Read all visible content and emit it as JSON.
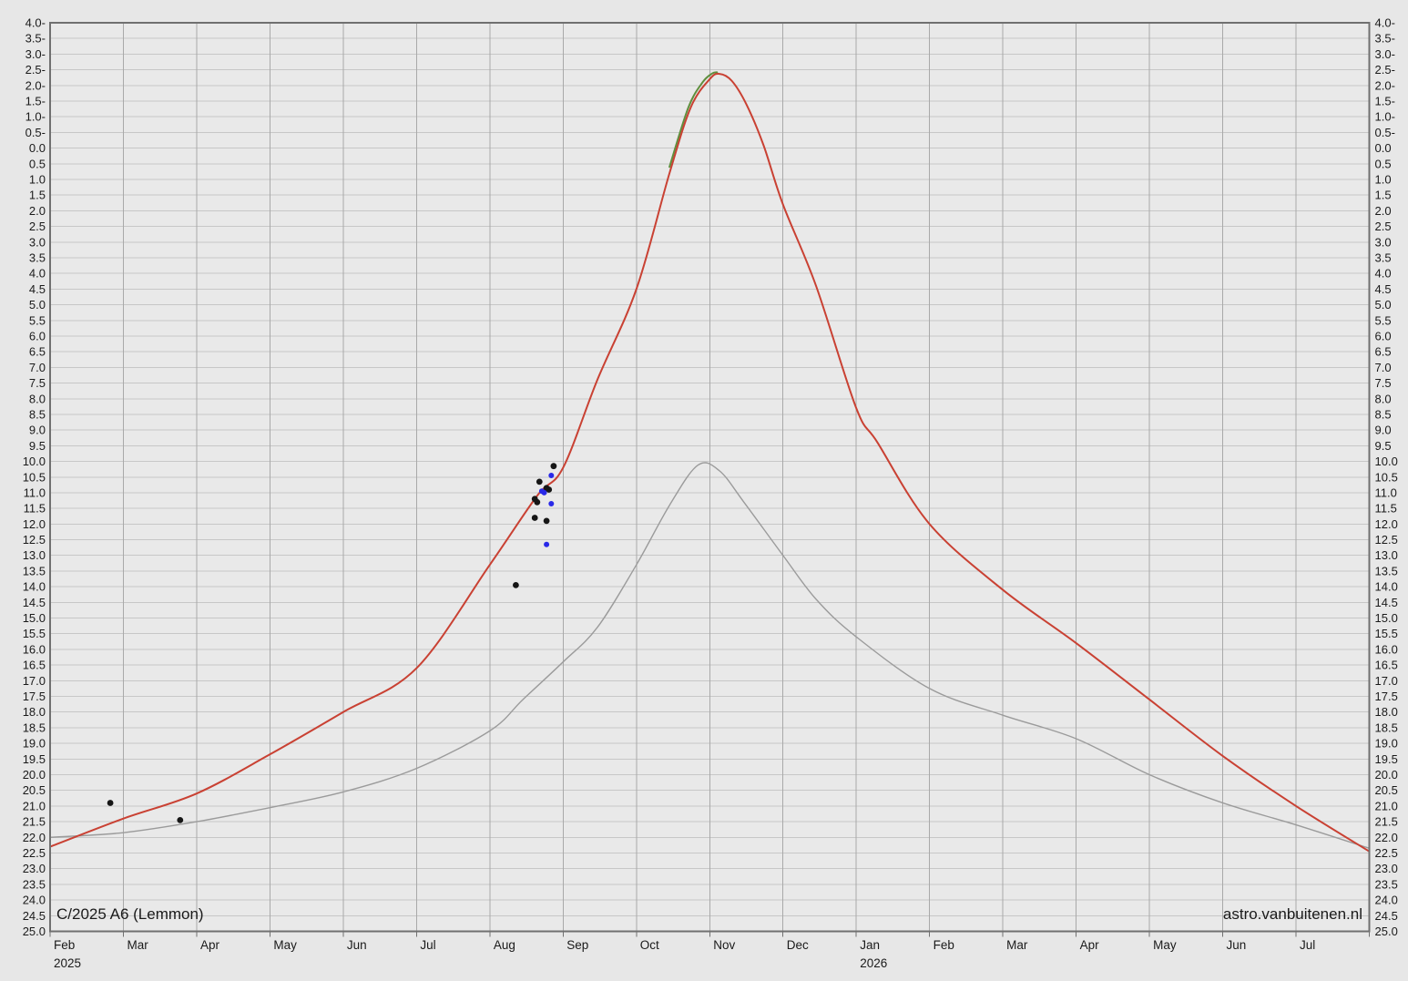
{
  "page": {
    "title": "C/2025 A6 (Lemmon)",
    "watermark": "astro.vanbuitenen.nl"
  },
  "style": {
    "page_bg": "#e7e7e7",
    "plot_bg": "#e9e9e9",
    "grid_horizontal": "#c7c7c7",
    "grid_vertical": "#a9a9a9",
    "frame": "#707070",
    "text": "#1a1a1a",
    "red_curve": "#c94133",
    "green_curve": "#5f8f3e",
    "gray_curve": "#9b9b9b",
    "black_points": "#161616",
    "blue_points": "#2929e8"
  },
  "chart_data": {
    "type": "line",
    "title": "C/2025 A6 (Lemmon)",
    "watermark": "astro.vanbuitenen.nl",
    "grid": true,
    "legend_position": "none",
    "x_axis": {
      "unit": "month",
      "start": "2025-02-01",
      "end": "2026-08-01",
      "month_labels": [
        "Feb",
        "Mar",
        "Apr",
        "May",
        "Jun",
        "Jul",
        "Aug",
        "Sep",
        "Oct",
        "Nov",
        "Dec",
        "Jan",
        "Feb",
        "Mar",
        "Apr",
        "May",
        "Jun",
        "Jul"
      ],
      "year_labels": [
        {
          "label": "2025",
          "month_index": 0
        },
        {
          "label": "2026",
          "month_index": 11
        }
      ]
    },
    "y_axis": {
      "quantity": "magnitude",
      "min": -4.0,
      "max": 25.0,
      "step": 0.5,
      "negative_label_suffix": "-",
      "label_sides": [
        "left",
        "right"
      ],
      "brighter_is_up": true
    },
    "series": [
      {
        "name": "prediction-previous",
        "color_key": "gray_curve",
        "width": 1.4,
        "points": [
          [
            "2025-02-01",
            22.0
          ],
          [
            "2025-03-01",
            21.85
          ],
          [
            "2025-04-01",
            21.5
          ],
          [
            "2025-05-01",
            21.05
          ],
          [
            "2025-06-01",
            20.55
          ],
          [
            "2025-07-01",
            19.8
          ],
          [
            "2025-08-01",
            18.6
          ],
          [
            "2025-08-15",
            17.6
          ],
          [
            "2025-09-01",
            16.4
          ],
          [
            "2025-09-15",
            15.3
          ],
          [
            "2025-10-01",
            13.3
          ],
          [
            "2025-10-15",
            11.4
          ],
          [
            "2025-10-27",
            10.12
          ],
          [
            "2025-11-05",
            10.3
          ],
          [
            "2025-11-15",
            11.3
          ],
          [
            "2025-12-01",
            13.0
          ],
          [
            "2025-12-15",
            14.4
          ],
          [
            "2026-01-01",
            15.6
          ],
          [
            "2026-02-01",
            17.25
          ],
          [
            "2026-03-01",
            18.1
          ],
          [
            "2026-04-01",
            18.85
          ],
          [
            "2026-05-01",
            20.0
          ],
          [
            "2026-06-01",
            20.9
          ],
          [
            "2026-07-01",
            21.6
          ],
          [
            "2026-08-01",
            22.35
          ]
        ]
      },
      {
        "name": "prediction-alt",
        "color_key": "green_curve",
        "width": 2,
        "points": [
          [
            "2025-10-15",
            0.6
          ],
          [
            "2025-10-23",
            -1.3
          ],
          [
            "2025-10-29",
            -2.1
          ],
          [
            "2025-11-02",
            -2.38
          ],
          [
            "2025-11-04",
            -2.42
          ]
        ]
      },
      {
        "name": "prediction-current",
        "color_key": "red_curve",
        "width": 2,
        "points": [
          [
            "2025-02-01",
            22.3
          ],
          [
            "2025-03-01",
            21.4
          ],
          [
            "2025-04-01",
            20.6
          ],
          [
            "2025-05-01",
            19.35
          ],
          [
            "2025-06-01",
            18.0
          ],
          [
            "2025-07-01",
            16.6
          ],
          [
            "2025-08-01",
            13.3
          ],
          [
            "2025-08-21",
            11.1
          ],
          [
            "2025-09-01",
            10.2
          ],
          [
            "2025-09-15",
            7.4
          ],
          [
            "2025-10-01",
            4.5
          ],
          [
            "2025-10-15",
            0.8
          ],
          [
            "2025-10-24",
            -1.3
          ],
          [
            "2025-11-01",
            -2.2
          ],
          [
            "2025-11-05",
            -2.37
          ],
          [
            "2025-11-10",
            -2.15
          ],
          [
            "2025-11-16",
            -1.4
          ],
          [
            "2025-11-23",
            -0.1
          ],
          [
            "2025-12-01",
            1.8
          ],
          [
            "2025-12-15",
            4.4
          ],
          [
            "2026-01-01",
            8.3
          ],
          [
            "2026-01-10",
            9.4
          ],
          [
            "2026-02-01",
            12.0
          ],
          [
            "2026-03-01",
            14.1
          ],
          [
            "2026-04-01",
            15.8
          ],
          [
            "2026-05-01",
            17.6
          ],
          [
            "2026-06-01",
            19.4
          ],
          [
            "2026-07-01",
            21.0
          ],
          [
            "2026-08-01",
            22.45
          ]
        ]
      }
    ],
    "observations": [
      {
        "name": "observations-black",
        "color_key": "black_points",
        "radius": 3.4,
        "points": [
          [
            "2025-02-24",
            20.9
          ],
          [
            "2025-03-25",
            21.45
          ],
          [
            "2025-08-12",
            13.95
          ],
          [
            "2025-08-20",
            11.8
          ],
          [
            "2025-08-25",
            11.9
          ],
          [
            "2025-08-20",
            11.2
          ],
          [
            "2025-08-21",
            11.3
          ],
          [
            "2025-08-22",
            10.65
          ],
          [
            "2025-08-25",
            10.85
          ],
          [
            "2025-08-26",
            10.9
          ],
          [
            "2025-08-28",
            10.15
          ]
        ]
      },
      {
        "name": "observations-blue",
        "color_key": "blue_points",
        "radius": 3.0,
        "points": [
          [
            "2025-08-27",
            10.45
          ],
          [
            "2025-08-23",
            10.95
          ],
          [
            "2025-08-24",
            11.0
          ],
          [
            "2025-08-27",
            11.35
          ],
          [
            "2025-08-25",
            12.65
          ]
        ]
      }
    ]
  }
}
